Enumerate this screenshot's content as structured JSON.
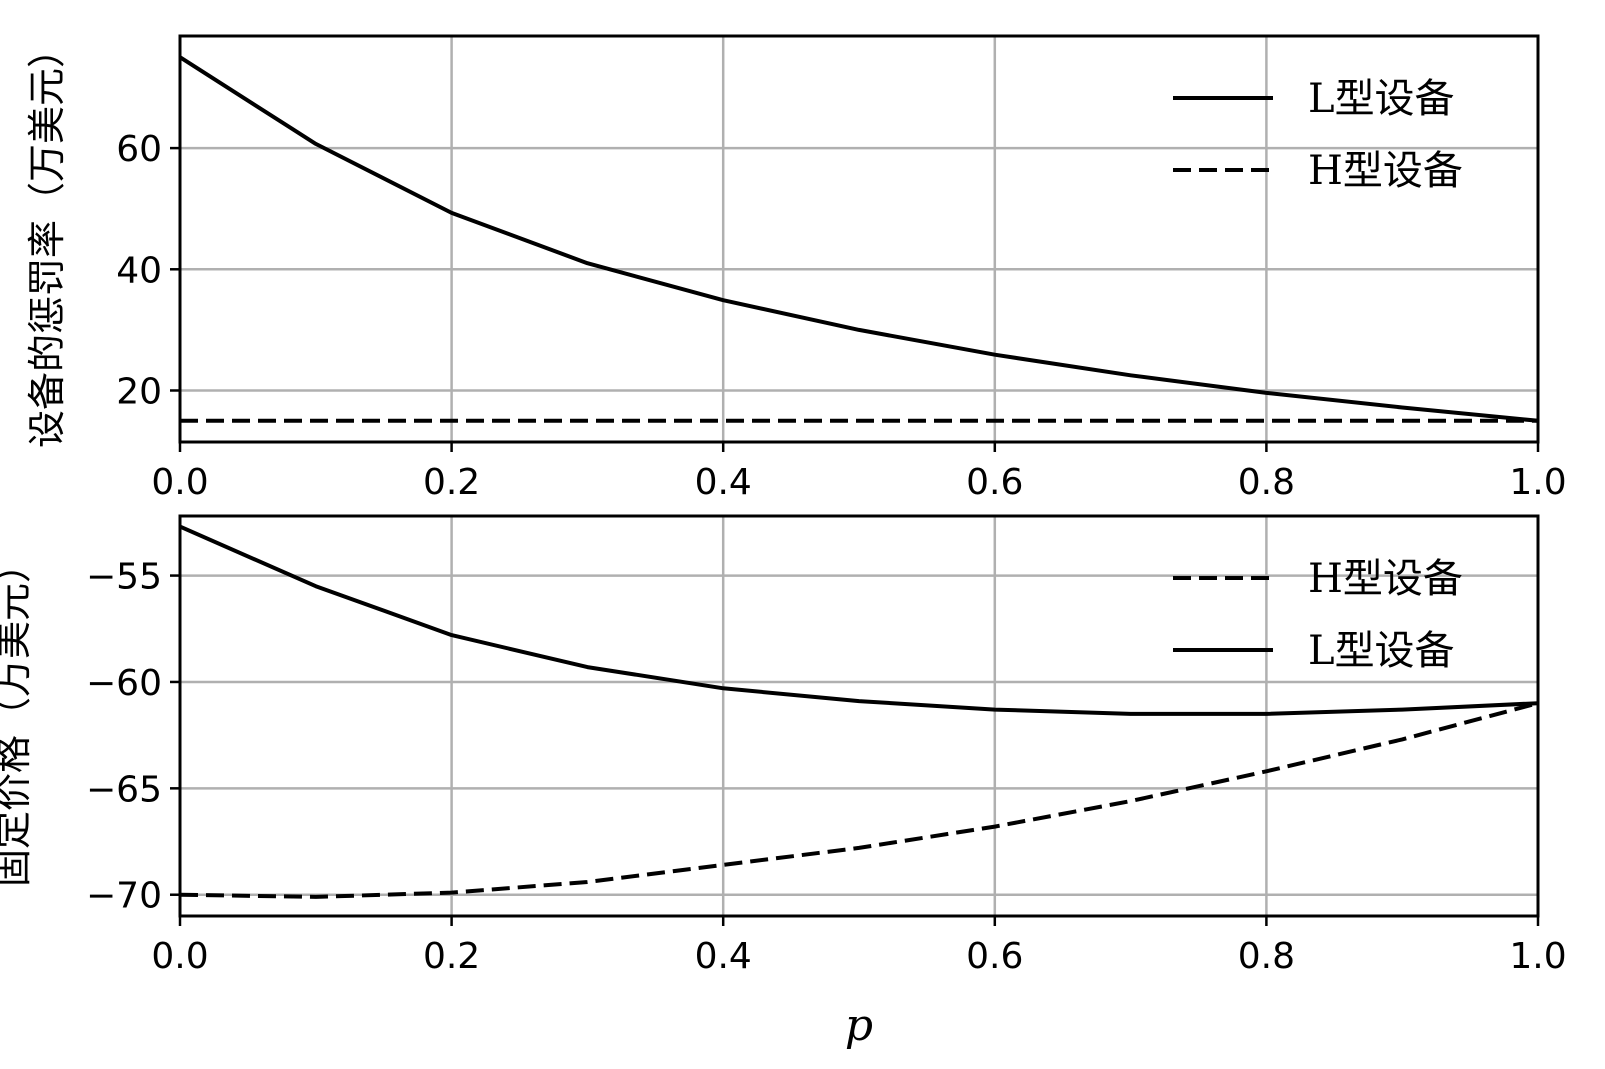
{
  "chart_data": [
    {
      "type": "line",
      "title": "",
      "xlabel": "",
      "ylabel": "设备的惩罚率（万美元）",
      "xlim": [
        0,
        1
      ],
      "ylim": [
        11.5,
        78.5
      ],
      "xticks": [
        0.0,
        0.2,
        0.4,
        0.6,
        0.8,
        1.0
      ],
      "xtick_labels": [
        "0.0",
        "0.2",
        "0.4",
        "0.6",
        "0.8",
        "1.0"
      ],
      "yticks": [
        20,
        40,
        60
      ],
      "ytick_labels": [
        "20",
        "40",
        "60"
      ],
      "grid": true,
      "legend": "upper right",
      "x": [
        0.0,
        0.1,
        0.2,
        0.3,
        0.4,
        0.5,
        0.6,
        0.7,
        0.8,
        0.9,
        1.0
      ],
      "series": [
        {
          "name": "L型设备",
          "style": "solid",
          "color": "#000000",
          "values": [
            75.0,
            60.7,
            49.3,
            41.0,
            34.9,
            30.0,
            25.9,
            22.5,
            19.6,
            17.2,
            15.0
          ]
        },
        {
          "name": "H型设备",
          "style": "dashed",
          "color": "#000000",
          "values": [
            15.0,
            15.0,
            15.0,
            15.0,
            15.0,
            15.0,
            15.0,
            15.0,
            15.0,
            15.0,
            15.0
          ]
        }
      ]
    },
    {
      "type": "line",
      "title": "",
      "xlabel": "p",
      "ylabel": "固定价格（万美元）",
      "xlim": [
        0,
        1
      ],
      "ylim": [
        -71,
        -52.2
      ],
      "xticks": [
        0.0,
        0.2,
        0.4,
        0.6,
        0.8,
        1.0
      ],
      "xtick_labels": [
        "0.0",
        "0.2",
        "0.4",
        "0.6",
        "0.8",
        "1.0"
      ],
      "yticks": [
        -55,
        -60,
        -65,
        -70
      ],
      "ytick_labels": [
        "−55",
        "−60",
        "−65",
        "−70"
      ],
      "grid": true,
      "legend": "upper right",
      "x": [
        0.0,
        0.1,
        0.2,
        0.3,
        0.4,
        0.5,
        0.6,
        0.7,
        0.8,
        0.9,
        1.0
      ],
      "series": [
        {
          "name": "H型设备",
          "style": "dashed",
          "color": "#000000",
          "values": [
            -70.0,
            -70.1,
            -69.9,
            -69.4,
            -68.6,
            -67.8,
            -66.8,
            -65.6,
            -64.2,
            -62.7,
            -61.0
          ]
        },
        {
          "name": "L型设备",
          "style": "solid",
          "color": "#000000",
          "values": [
            -52.7,
            -55.5,
            -57.8,
            -59.3,
            -60.3,
            -60.9,
            -61.3,
            -61.5,
            -61.5,
            -61.3,
            -61.0
          ]
        }
      ]
    }
  ]
}
